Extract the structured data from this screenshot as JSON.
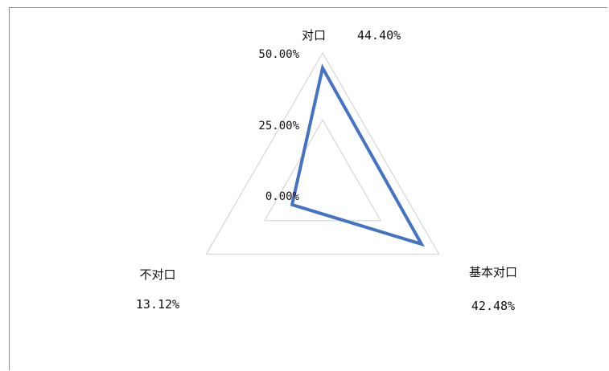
{
  "chart_data": {
    "type": "radar",
    "categories": [
      "对口",
      "基本对口",
      "不对口"
    ],
    "values": [
      44.4,
      42.48,
      13.12
    ],
    "value_labels": [
      "44.40%",
      "42.48%",
      "13.12%"
    ],
    "ticks": [
      "0.00%",
      "25.00%",
      "50.00%"
    ],
    "range": [
      0,
      50
    ],
    "series_color": "#4472c4",
    "grid_color": "#d9d9d9"
  }
}
